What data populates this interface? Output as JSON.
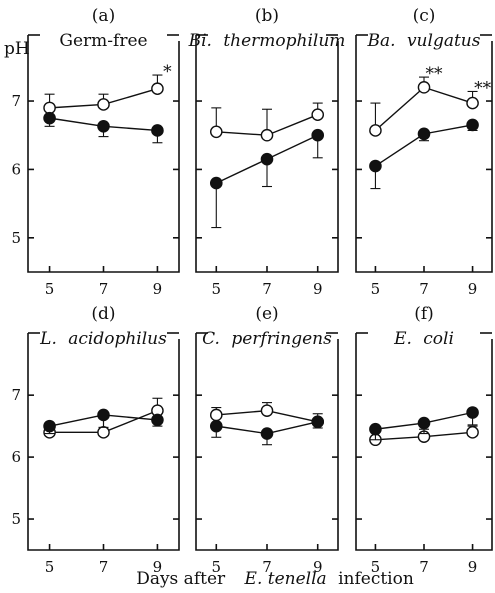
{
  "figure": {
    "y_unit": "pH",
    "x_label_parts": [
      "Days after",
      "E. tenella",
      "infection"
    ]
  },
  "chart_data": [
    {
      "type": "line",
      "panel": "(a)",
      "title": "Germ-free",
      "x": [
        5,
        7,
        9
      ],
      "xlim": [
        4.2,
        9.8
      ],
      "ylim": [
        4.5,
        7.6
      ],
      "yticks": [
        5,
        6,
        7
      ],
      "xticks": [
        5,
        7,
        9
      ],
      "show_yticks": true,
      "series": [
        {
          "marker": "open",
          "values": [
            6.9,
            6.95,
            7.18
          ],
          "errors": [
            0.2,
            0.15,
            0.2
          ]
        },
        {
          "marker": "filled",
          "values": [
            6.75,
            6.63,
            6.57
          ],
          "errors": [
            0.12,
            0.15,
            0.18
          ]
        }
      ],
      "annotations": [
        {
          "x": 9,
          "text": "*"
        }
      ]
    },
    {
      "type": "line",
      "panel": "(b)",
      "title": "Bi. thermophilum",
      "x": [
        5,
        7,
        9
      ],
      "xlim": [
        4.2,
        9.8
      ],
      "ylim": [
        4.5,
        7.6
      ],
      "yticks": [
        5,
        6,
        7
      ],
      "xticks": [
        5,
        7,
        9
      ],
      "show_yticks": false,
      "series": [
        {
          "marker": "open",
          "values": [
            6.55,
            6.5,
            6.8
          ],
          "errors": [
            0.35,
            0.38,
            0.17
          ]
        },
        {
          "marker": "filled",
          "values": [
            5.8,
            6.15,
            6.5
          ],
          "errors": [
            0.65,
            0.4,
            0.33
          ]
        }
      ],
      "annotations": []
    },
    {
      "type": "line",
      "panel": "(c)",
      "title": "Ba. vulgatus",
      "x": [
        5,
        7,
        9
      ],
      "xlim": [
        4.2,
        9.8
      ],
      "ylim": [
        4.5,
        7.6
      ],
      "yticks": [
        5,
        6,
        7
      ],
      "xticks": [
        5,
        7,
        9
      ],
      "show_yticks": false,
      "series": [
        {
          "marker": "open",
          "values": [
            6.57,
            7.2,
            6.97
          ],
          "errors": [
            0.4,
            0.15,
            0.17
          ]
        },
        {
          "marker": "filled",
          "values": [
            6.05,
            6.52,
            6.65
          ],
          "errors": [
            0.33,
            0.1,
            0.08
          ]
        }
      ],
      "annotations": [
        {
          "x": 7,
          "text": "**"
        },
        {
          "x": 9,
          "text": "**"
        }
      ]
    },
    {
      "type": "line",
      "panel": "(d)",
      "title": "L. acidophilus",
      "x": [
        5,
        7,
        9
      ],
      "xlim": [
        4.2,
        9.8
      ],
      "ylim": [
        4.5,
        7.6
      ],
      "yticks": [
        5,
        6,
        7
      ],
      "xticks": [
        5,
        7,
        9
      ],
      "show_yticks": true,
      "series": [
        {
          "marker": "open",
          "values": [
            6.4,
            6.4,
            6.75
          ],
          "errors": [
            0.08,
            0.27,
            0.2
          ]
        },
        {
          "marker": "filled",
          "values": [
            6.5,
            6.68,
            6.6
          ],
          "errors": [
            0.12,
            0.2,
            0.1
          ]
        }
      ],
      "annotations": []
    },
    {
      "type": "line",
      "panel": "(e)",
      "title": "C. perfringens",
      "x": [
        5,
        7,
        9
      ],
      "xlim": [
        4.2,
        9.8
      ],
      "ylim": [
        4.5,
        7.6
      ],
      "yticks": [
        5,
        6,
        7
      ],
      "xticks": [
        5,
        7,
        9
      ],
      "show_yticks": false,
      "series": [
        {
          "marker": "open",
          "values": [
            6.68,
            6.75,
            6.57
          ],
          "errors": [
            0.12,
            0.13,
            0.13
          ]
        },
        {
          "marker": "filled",
          "values": [
            6.5,
            6.38,
            6.57
          ],
          "errors": [
            0.18,
            0.18,
            0.1
          ]
        }
      ],
      "annotations": []
    },
    {
      "type": "line",
      "panel": "(f)",
      "title": "E. coli",
      "x": [
        5,
        7,
        9
      ],
      "xlim": [
        4.2,
        9.8
      ],
      "ylim": [
        4.5,
        7.6
      ],
      "yticks": [
        5,
        6,
        7
      ],
      "xticks": [
        5,
        7,
        9
      ],
      "show_yticks": false,
      "series": [
        {
          "marker": "open",
          "values": [
            6.28,
            6.33,
            6.4
          ],
          "errors": [
            0.13,
            0.12,
            0.1
          ]
        },
        {
          "marker": "filled",
          "values": [
            6.45,
            6.55,
            6.72
          ],
          "errors": [
            0.17,
            0.17,
            0.2
          ]
        }
      ],
      "annotations": []
    }
  ]
}
